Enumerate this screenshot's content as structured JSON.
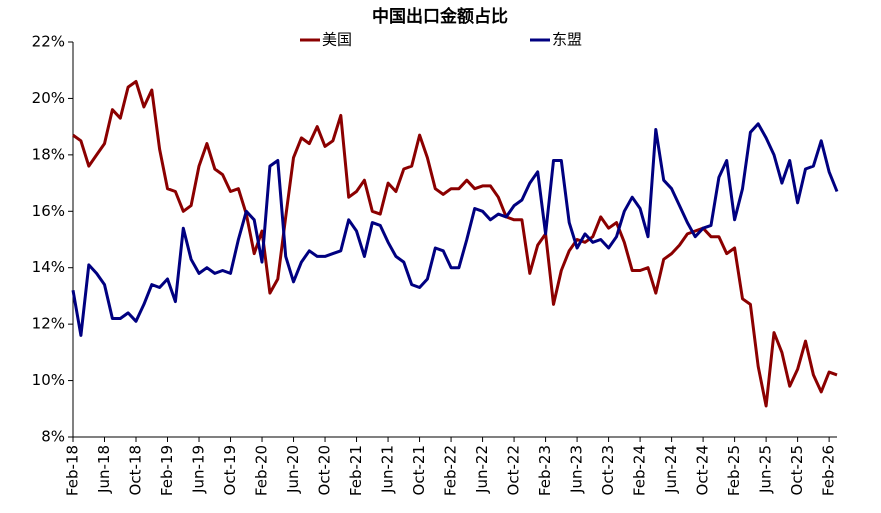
{
  "chart_data": {
    "type": "line",
    "title": "中国出口金额占比",
    "categories": [
      "Feb-18",
      null,
      null,
      null,
      "Jun-18",
      null,
      null,
      null,
      "Oct-18",
      null,
      null,
      null,
      "Feb-19",
      null,
      null,
      null,
      "Jun-19",
      null,
      null,
      null,
      "Oct-19",
      null,
      null,
      null,
      "Feb-20",
      null,
      null,
      null,
      "Jun-20",
      null,
      null,
      null,
      "Oct-20",
      null,
      null,
      null,
      "Feb-21",
      null,
      null,
      null,
      "Jun-21",
      null,
      null,
      null,
      "Oct-21",
      null,
      null,
      null,
      "Feb-22",
      null,
      null,
      null,
      "Jun-22",
      null,
      null,
      null,
      "Oct-22",
      null,
      null,
      null,
      "Feb-23",
      null,
      null,
      null,
      "Jun-23",
      null,
      null,
      null,
      "Oct-23",
      null,
      null,
      null,
      "Feb-24",
      null,
      null,
      null,
      "Jun-24",
      null,
      null,
      null,
      "Oct-24",
      null,
      null,
      null,
      "Feb-25",
      null,
      null,
      null,
      "Jun-25",
      null,
      null,
      null,
      "Oct-25",
      null,
      null,
      null,
      "Feb-26",
      null
    ],
    "series": [
      {
        "name": "美国",
        "color": "#8b0000",
        "values": [
          18.7,
          18.5,
          17.6,
          18.0,
          18.4,
          19.6,
          19.3,
          20.4,
          20.6,
          19.7,
          20.3,
          18.2,
          16.8,
          16.7,
          16.0,
          16.2,
          17.6,
          18.4,
          17.5,
          17.3,
          16.7,
          16.8,
          15.9,
          14.5,
          15.3,
          13.1,
          13.6,
          15.8,
          17.9,
          18.6,
          18.4,
          19.0,
          18.3,
          18.5,
          19.4,
          16.5,
          16.7,
          17.1,
          16.0,
          15.9,
          17.0,
          16.7,
          17.5,
          17.6,
          18.7,
          17.9,
          16.8,
          16.6,
          16.8,
          16.8,
          17.1,
          16.8,
          16.9,
          16.9,
          16.5,
          15.8,
          15.7,
          15.7,
          13.8,
          14.8,
          15.2,
          12.7,
          13.9,
          14.6,
          15.0,
          14.9,
          15.1,
          15.8,
          15.4,
          15.6,
          14.9,
          13.9,
          13.9,
          14.0,
          13.1,
          14.3,
          14.5,
          14.8,
          15.2,
          15.3,
          15.4,
          15.1,
          15.1,
          14.5,
          14.7,
          12.9,
          12.7,
          10.5,
          9.1,
          11.7,
          11.0,
          9.8,
          10.4,
          11.4,
          10.2,
          9.6,
          10.3,
          10.2
        ]
      },
      {
        "name": "东盟",
        "color": "#000080",
        "values": [
          13.2,
          11.6,
          14.1,
          13.8,
          13.4,
          12.2,
          12.2,
          12.4,
          12.1,
          12.7,
          13.4,
          13.3,
          13.6,
          12.8,
          15.4,
          14.3,
          13.8,
          14.0,
          13.8,
          13.9,
          13.8,
          15.0,
          16.0,
          15.7,
          14.2,
          17.6,
          17.8,
          14.4,
          13.5,
          14.2,
          14.6,
          14.4,
          14.4,
          14.5,
          14.6,
          15.7,
          15.3,
          14.4,
          15.6,
          15.5,
          14.9,
          14.4,
          14.2,
          13.4,
          13.3,
          13.6,
          14.7,
          14.6,
          14.0,
          14.0,
          15.0,
          16.1,
          16.0,
          15.7,
          15.9,
          15.8,
          16.2,
          16.4,
          17.0,
          17.4,
          15.2,
          17.8,
          17.8,
          15.6,
          14.7,
          15.2,
          14.9,
          15.0,
          14.7,
          15.1,
          16.0,
          16.5,
          16.1,
          15.1,
          18.9,
          17.1,
          16.8,
          16.2,
          15.6,
          15.1,
          15.4,
          15.5,
          17.2,
          17.8,
          15.7,
          16.8,
          18.8,
          19.1,
          18.6,
          18.0,
          17.0,
          17.8,
          16.3,
          17.5,
          17.6,
          18.5,
          17.4,
          16.7
        ]
      }
    ],
    "ylim": [
      8,
      22
    ],
    "yticks": [
      {
        "value": 8,
        "label": "8%"
      },
      {
        "value": 10,
        "label": "10%"
      },
      {
        "value": 12,
        "label": "12%"
      },
      {
        "value": 14,
        "label": "14%"
      },
      {
        "value": 16,
        "label": "16%"
      },
      {
        "value": 18,
        "label": "18%"
      },
      {
        "value": 20,
        "label": "20%"
      },
      {
        "value": 22,
        "label": "22%"
      }
    ],
    "grid": false
  }
}
